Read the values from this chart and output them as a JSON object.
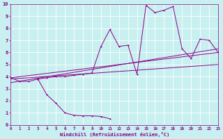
{
  "xlabel": "Windchill (Refroidissement éolien,°C)",
  "bg_color": "#c8f0f0",
  "grid_color": "#ffffff",
  "line_color": "#880088",
  "xlim": [
    0,
    23
  ],
  "ylim": [
    0,
    10
  ],
  "xticks": [
    0,
    1,
    2,
    3,
    4,
    5,
    6,
    7,
    8,
    9,
    10,
    11,
    12,
    13,
    14,
    15,
    16,
    17,
    18,
    19,
    20,
    21,
    22,
    23
  ],
  "yticks": [
    0,
    1,
    2,
    3,
    4,
    5,
    6,
    7,
    8,
    9,
    10
  ],
  "series_main": [
    [
      0,
      3.9
    ],
    [
      1,
      3.6
    ],
    [
      2,
      3.6
    ],
    [
      3,
      3.8
    ],
    [
      4,
      3.9
    ],
    [
      5,
      4.0
    ],
    [
      6,
      4.0
    ],
    [
      7,
      4.1
    ],
    [
      8,
      4.2
    ],
    [
      9,
      4.3
    ],
    [
      10,
      6.5
    ],
    [
      11,
      7.9
    ],
    [
      12,
      6.5
    ],
    [
      13,
      6.6
    ],
    [
      14,
      4.2
    ],
    [
      15,
      9.9
    ],
    [
      16,
      9.3
    ],
    [
      17,
      9.5
    ],
    [
      18,
      9.8
    ],
    [
      19,
      6.3
    ],
    [
      20,
      5.5
    ],
    [
      21,
      7.1
    ],
    [
      22,
      7.0
    ],
    [
      23,
      6.0
    ]
  ],
  "series_low": [
    [
      3,
      3.8
    ],
    [
      4,
      2.5
    ],
    [
      5,
      1.8
    ],
    [
      6,
      1.0
    ],
    [
      7,
      0.8
    ],
    [
      8,
      0.75
    ],
    [
      9,
      0.75
    ],
    [
      10,
      0.7
    ],
    [
      11,
      0.5
    ]
  ],
  "trend_lines": [
    [
      [
        0,
        3.9
      ],
      [
        23,
        6.0
      ]
    ],
    [
      [
        0,
        3.8
      ],
      [
        23,
        5.0
      ]
    ],
    [
      [
        0,
        3.5
      ],
      [
        23,
        6.3
      ]
    ]
  ]
}
